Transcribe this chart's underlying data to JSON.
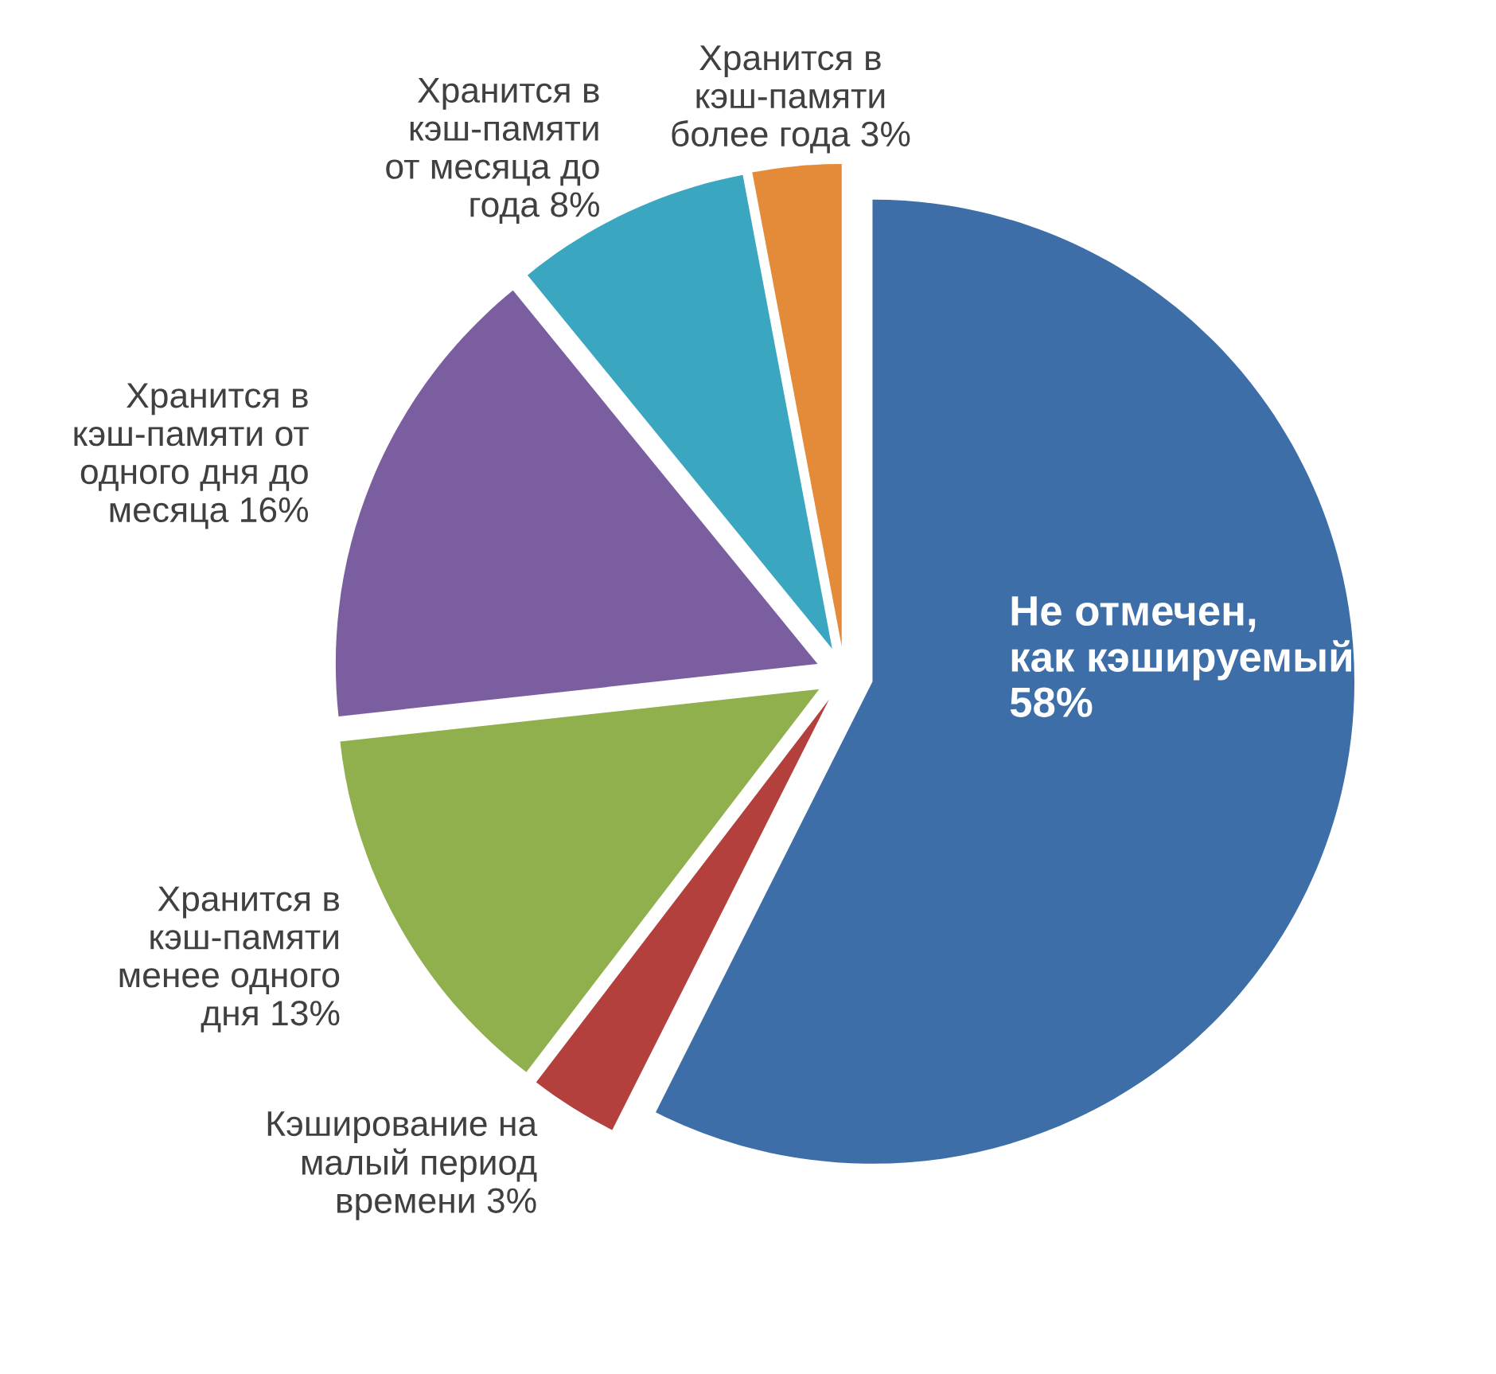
{
  "chart_data": {
    "type": "pie",
    "categories": [
      "Не отмечен,\nкак кэшируемый",
      "Кэширование на\nмалый период\nвремени",
      "Хранится в\nкэш-памяти\nменее одного\nдня",
      "Хранится в\nкэш-памяти от\nодного дня до\nмесяца",
      "Хранится в\nкэш-памяти\nот месяца до\nгода",
      "Хранится в\nкэш-памяти\nболее года"
    ],
    "values": [
      58,
      3,
      13,
      16,
      8,
      3
    ],
    "value_labels": [
      "58%",
      "3%",
      "13%",
      "16%",
      "8%",
      "3%"
    ],
    "colors": [
      "#3d6ea8",
      "#b3403c",
      "#8fb04c",
      "#7b5ea0",
      "#3ba6c0",
      "#e38b38"
    ]
  }
}
